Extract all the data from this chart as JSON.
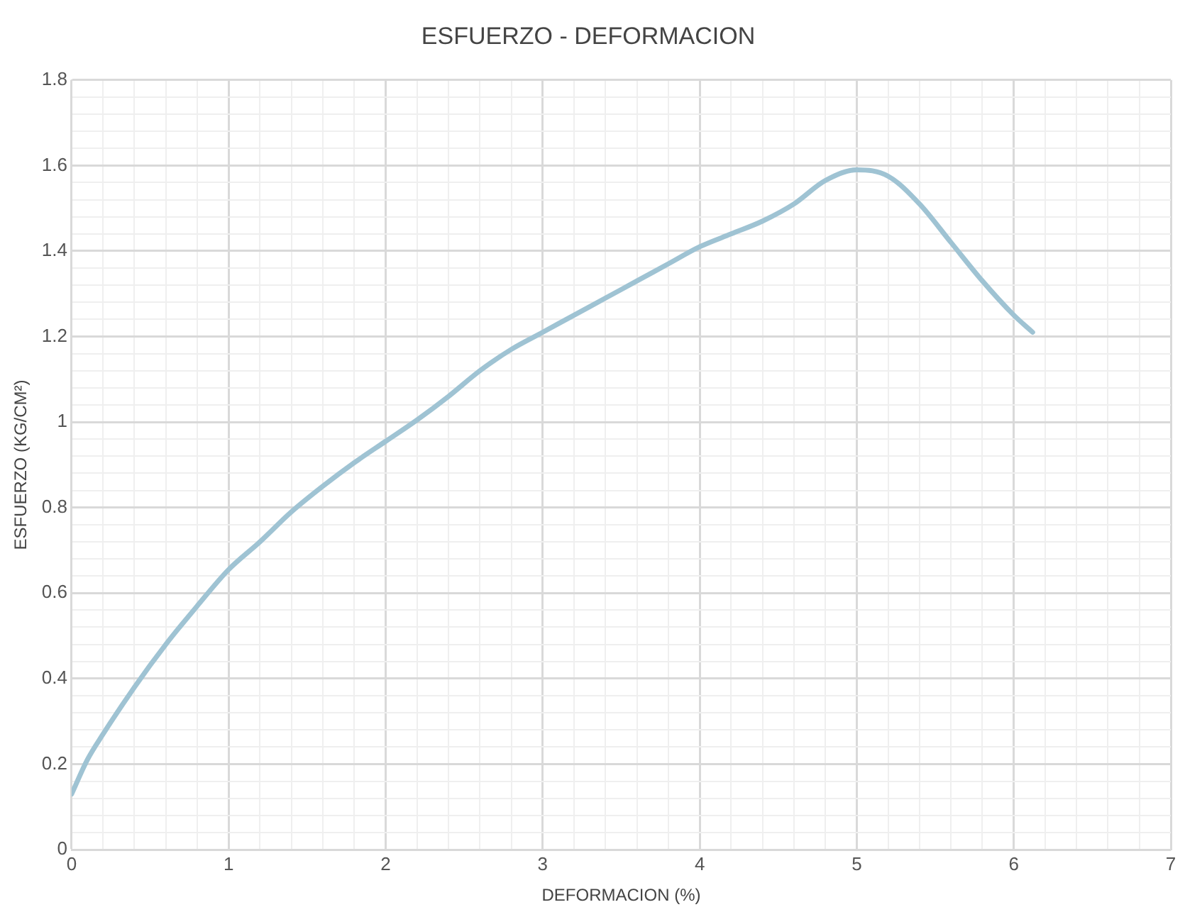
{
  "chart_data": {
    "type": "line",
    "title": "ESFUERZO - DEFORMACION",
    "xlabel": "DEFORMACION (%)",
    "ylabel": "ESFUERZO (KG/CM²)",
    "x": [
      0,
      0.1,
      0.2,
      0.4,
      0.6,
      0.8,
      1.0,
      1.2,
      1.4,
      1.6,
      1.8,
      2.0,
      2.2,
      2.4,
      2.6,
      2.8,
      3.0,
      3.2,
      3.4,
      3.6,
      3.8,
      4.0,
      4.2,
      4.4,
      4.6,
      4.8,
      5.0,
      5.2,
      5.4,
      5.6,
      5.8,
      6.0,
      6.12
    ],
    "series": [
      {
        "color": "#9fc3d3",
        "values": [
          0.13,
          0.21,
          0.27,
          0.38,
          0.48,
          0.57,
          0.655,
          0.72,
          0.79,
          0.85,
          0.905,
          0.955,
          1.005,
          1.06,
          1.12,
          1.17,
          1.21,
          1.25,
          1.29,
          1.33,
          1.37,
          1.41,
          1.44,
          1.47,
          1.51,
          1.565,
          1.59,
          1.575,
          1.51,
          1.42,
          1.33,
          1.25,
          1.21
        ]
      }
    ],
    "xlim": [
      0,
      7
    ],
    "ylim": [
      0,
      1.8
    ],
    "xticks": [
      0,
      {
        "value": 0.2,
        "label": null
      },
      {
        "value": 0.4,
        "label": null
      },
      {
        "value": 0.6,
        "label": null
      },
      {
        "value": 0.8,
        "label": null
      },
      1,
      {
        "value": 1.2,
        "label": null
      },
      {
        "value": 1.4,
        "label": null
      },
      {
        "value": 1.6,
        "label": null
      },
      {
        "value": 1.8,
        "label": null
      },
      2,
      {
        "value": 2.2,
        "label": null
      },
      {
        "value": 2.4,
        "label": null
      },
      {
        "value": 2.6,
        "label": null
      },
      {
        "value": 2.8,
        "label": null
      },
      3,
      {
        "value": 3.2,
        "label": null
      },
      {
        "value": 3.4,
        "label": null
      },
      {
        "value": 3.6,
        "label": null
      },
      {
        "value": 3.8,
        "label": null
      },
      4,
      {
        "value": 4.2,
        "label": null
      },
      {
        "value": 4.4,
        "label": null
      },
      {
        "value": 4.6,
        "label": null
      },
      {
        "value": 4.8,
        "label": null
      },
      5,
      {
        "value": 5.2,
        "label": null
      },
      {
        "value": 5.4,
        "label": null
      },
      {
        "value": 5.6,
        "label": null
      },
      {
        "value": 5.8,
        "label": null
      },
      6,
      {
        "value": 6.2,
        "label": null
      },
      {
        "value": 6.4,
        "label": null
      },
      {
        "value": 6.6,
        "label": null
      },
      {
        "value": 6.8,
        "label": null
      },
      7
    ],
    "yticks": [
      0,
      {
        "value": 0.04,
        "label": null
      },
      {
        "value": 0.08,
        "label": null
      },
      {
        "value": 0.12,
        "label": null
      },
      {
        "value": 0.16,
        "label": null
      },
      0.2,
      {
        "value": 0.24,
        "label": null
      },
      {
        "value": 0.28,
        "label": null
      },
      {
        "value": 0.32,
        "label": null
      },
      {
        "value": 0.36,
        "label": null
      },
      0.4,
      {
        "value": 0.44,
        "label": null
      },
      {
        "value": 0.48,
        "label": null
      },
      {
        "value": 0.52,
        "label": null
      },
      {
        "value": 0.56,
        "label": null
      },
      0.6,
      {
        "value": 0.64,
        "label": null
      },
      {
        "value": 0.68,
        "label": null
      },
      {
        "value": 0.72,
        "label": null
      },
      {
        "value": 0.76,
        "label": null
      },
      0.8,
      {
        "value": 0.84,
        "label": null
      },
      {
        "value": 0.88,
        "label": null
      },
      {
        "value": 0.92,
        "label": null
      },
      {
        "value": 0.96,
        "label": null
      },
      1,
      {
        "value": 1.04,
        "label": null
      },
      {
        "value": 1.08,
        "label": null
      },
      {
        "value": 1.12,
        "label": null
      },
      {
        "value": 1.16,
        "label": null
      },
      1.2,
      {
        "value": 1.24,
        "label": null
      },
      {
        "value": 1.28,
        "label": null
      },
      {
        "value": 1.32,
        "label": null
      },
      {
        "value": 1.36,
        "label": null
      },
      1.4,
      {
        "value": 1.44,
        "label": null
      },
      {
        "value": 1.48,
        "label": null
      },
      {
        "value": 1.52,
        "label": null
      },
      {
        "value": 1.56,
        "label": null
      },
      1.6,
      {
        "value": 1.64,
        "label": null
      },
      {
        "value": 1.68,
        "label": null
      },
      {
        "value": 1.72,
        "label": null
      },
      {
        "value": 1.76,
        "label": null
      },
      1.8
    ],
    "grid": true,
    "legend": false,
    "marker": "none",
    "line_style": "solid"
  }
}
